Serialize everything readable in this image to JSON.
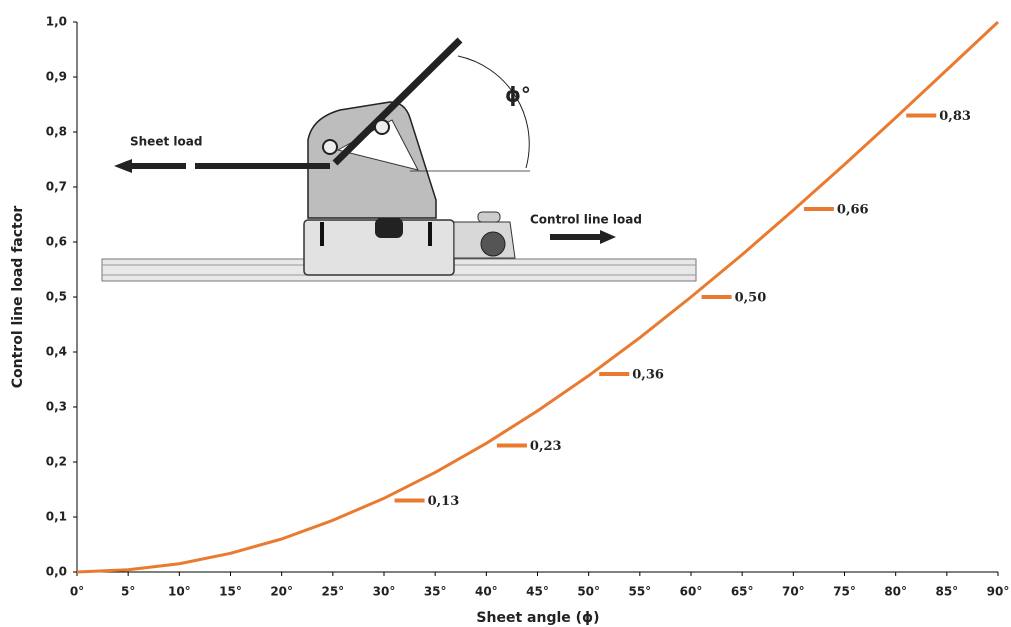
{
  "chart_data": {
    "type": "line",
    "x_label": "Sheet angle (ϕ)",
    "y_label": "Control line load factor",
    "annotations": [
      "Sheet load",
      "Control line load",
      "ϕ°"
    ],
    "x": [
      0,
      5,
      10,
      15,
      20,
      25,
      30,
      35,
      40,
      45,
      50,
      55,
      60,
      65,
      70,
      75,
      80,
      85,
      90
    ],
    "series": [
      {
        "color": "#ea7a2f",
        "values": [
          0,
          0.004,
          0.015,
          0.034,
          0.06,
          0.094,
          0.134,
          0.181,
          0.234,
          0.293,
          0.357,
          0.426,
          0.5,
          0.577,
          0.658,
          0.741,
          0.826,
          0.913,
          1.0
        ]
      }
    ],
    "markers": {
      "color": "#ea7a2f",
      "x": [
        32.5,
        42.5,
        52.5,
        62.5,
        72.5,
        82.5
      ],
      "values": [
        0.13,
        0.23,
        0.36,
        0.5,
        0.66,
        0.83
      ],
      "value_labels": [
        "0,13",
        "0,23",
        "0,36",
        "0,50",
        "0,66",
        "0,83"
      ]
    },
    "xlim": [
      0,
      90
    ],
    "ylim": [
      0,
      1
    ],
    "xticks": [
      {
        "value": 0,
        "label": "0°"
      },
      {
        "value": 5,
        "label": "5°"
      },
      {
        "value": 10,
        "label": "10°"
      },
      {
        "value": 15,
        "label": "15°"
      },
      {
        "value": 20,
        "label": "20°"
      },
      {
        "value": 25,
        "label": "25°"
      },
      {
        "value": 30,
        "label": "30°"
      },
      {
        "value": 35,
        "label": "35°"
      },
      {
        "value": 40,
        "label": "40°"
      },
      {
        "value": 45,
        "label": "45°"
      },
      {
        "value": 50,
        "label": "50°"
      },
      {
        "value": 55,
        "label": "55°"
      },
      {
        "value": 60,
        "label": "60°"
      },
      {
        "value": 65,
        "label": "65°"
      },
      {
        "value": 70,
        "label": "70°"
      },
      {
        "value": 75,
        "label": "75°"
      },
      {
        "value": 80,
        "label": "80°"
      },
      {
        "value": 85,
        "label": "85°"
      },
      {
        "value": 90,
        "label": "90°"
      }
    ],
    "yticks": [
      {
        "value": 0,
        "label": "0,0"
      },
      {
        "value": 0.1,
        "label": "0,1"
      },
      {
        "value": 0.2,
        "label": "0,2"
      },
      {
        "value": 0.3,
        "label": "0,3"
      },
      {
        "value": 0.4,
        "label": "0,4"
      },
      {
        "value": 0.5,
        "label": "0,5"
      },
      {
        "value": 0.6,
        "label": "0,6"
      },
      {
        "value": 0.7,
        "label": "0,7"
      },
      {
        "value": 0.8,
        "label": "0,8"
      },
      {
        "value": 0.9,
        "label": "0,9"
      },
      {
        "value": 1,
        "label": "1,0"
      }
    ]
  }
}
